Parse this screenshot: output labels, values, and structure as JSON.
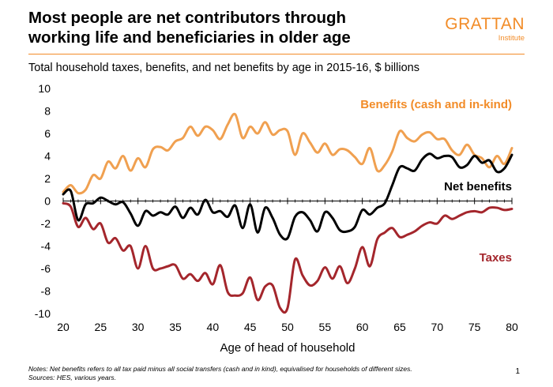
{
  "header": {
    "title_line1": "Most people are net contributors through",
    "title_line2": "working life and beneficiaries in older age",
    "logo_main": "GRATTAN",
    "logo_sub": "Institute",
    "subtitle": "Total household taxes, benefits, and net benefits by age in 2015-16, $ billions"
  },
  "footer": {
    "notes": "Notes: Net benefits refers to all tax paid minus all social transfers (cash and in kind), equivalised for households of different sizes.",
    "sources": "Sources: HES, various years.",
    "page_number": "1"
  },
  "colors": {
    "benefits": "#f0a050",
    "taxes": "#a4262c",
    "net": "#000000",
    "accent": "#f28c28"
  },
  "chart_data": {
    "type": "line",
    "title": "",
    "xlabel": "Age of head of household",
    "ylabel": "",
    "xlim": [
      20,
      80
    ],
    "ylim": [
      -10,
      10
    ],
    "x_ticks": [
      20,
      25,
      30,
      35,
      40,
      45,
      50,
      55,
      60,
      65,
      70,
      75,
      80
    ],
    "y_ticks": [
      10,
      8,
      6,
      4,
      2,
      0,
      -2,
      -4,
      -6,
      -8,
      -10
    ],
    "grid": false,
    "x": [
      20,
      21,
      22,
      23,
      24,
      25,
      26,
      27,
      28,
      29,
      30,
      31,
      32,
      33,
      34,
      35,
      36,
      37,
      38,
      39,
      40,
      41,
      42,
      43,
      44,
      45,
      46,
      47,
      48,
      49,
      50,
      51,
      52,
      53,
      54,
      55,
      56,
      57,
      58,
      59,
      60,
      61,
      62,
      63,
      64,
      65,
      66,
      67,
      68,
      69,
      70,
      71,
      72,
      73,
      74,
      75,
      76,
      77,
      78,
      79,
      80
    ],
    "series": [
      {
        "name": "Benefits (cash and in-kind)",
        "values": [
          0.8,
          1.4,
          0.7,
          1.0,
          2.3,
          2.0,
          3.5,
          2.9,
          4.0,
          2.7,
          3.8,
          3.0,
          4.6,
          4.8,
          4.5,
          5.3,
          5.6,
          6.6,
          5.8,
          6.6,
          6.3,
          5.5,
          6.8,
          7.7,
          5.6,
          6.6,
          6.0,
          7.0,
          5.9,
          6.3,
          6.2,
          4.1,
          6.0,
          5.2,
          4.3,
          5.1,
          4.1,
          4.6,
          4.5,
          3.9,
          3.3,
          4.7,
          2.7,
          3.2,
          4.4,
          6.2,
          5.6,
          5.3,
          5.9,
          6.1,
          5.5,
          5.5,
          4.5,
          4.1,
          5.0,
          4.1,
          3.8,
          3.0,
          4.0,
          3.3,
          4.7
        ]
      },
      {
        "name": "Net benefits",
        "values": [
          0.6,
          0.9,
          -1.7,
          -0.3,
          -0.2,
          0.3,
          0.0,
          -0.3,
          -0.1,
          -1.1,
          -2.2,
          -0.9,
          -1.3,
          -1.0,
          -1.2,
          -0.5,
          -1.5,
          -0.6,
          -1.2,
          0.1,
          -1.0,
          -0.9,
          -1.4,
          -0.4,
          -2.4,
          -0.3,
          -2.8,
          -0.6,
          -1.5,
          -3.0,
          -3.3,
          -1.4,
          -1.0,
          -1.7,
          -2.7,
          -1.0,
          -1.5,
          -2.6,
          -2.7,
          -2.3,
          -0.8,
          -1.2,
          -0.6,
          -0.2,
          1.4,
          3.0,
          2.9,
          2.7,
          3.7,
          4.2,
          3.8,
          4.0,
          3.9,
          3.0,
          3.2,
          4.0,
          3.4,
          3.6,
          2.6,
          2.9,
          4.1
        ]
      },
      {
        "name": "Taxes",
        "values": [
          -0.2,
          -0.5,
          -2.3,
          -1.5,
          -2.5,
          -2.0,
          -3.7,
          -3.3,
          -4.4,
          -4.0,
          -6.0,
          -4.0,
          -6.0,
          -6.0,
          -5.8,
          -5.7,
          -6.9,
          -6.5,
          -7.1,
          -6.4,
          -7.4,
          -5.7,
          -8.1,
          -8.4,
          -8.2,
          -6.8,
          -8.8,
          -7.6,
          -7.5,
          -9.5,
          -9.5,
          -5.2,
          -6.6,
          -7.5,
          -7.1,
          -5.9,
          -6.9,
          -5.8,
          -7.3,
          -6.0,
          -4.1,
          -5.8,
          -3.4,
          -2.8,
          -2.4,
          -3.2,
          -3.0,
          -2.7,
          -2.2,
          -1.9,
          -2.0,
          -1.3,
          -1.6,
          -1.3,
          -1.0,
          -0.9,
          -1.0,
          -0.6,
          -0.6,
          -0.8,
          -0.7
        ]
      }
    ],
    "annotations": [
      {
        "text": "Benefits (cash and in-kind)",
        "series": "Benefits (cash and in-kind)"
      },
      {
        "text": "Net benefits",
        "series": "Net benefits"
      },
      {
        "text": "Taxes",
        "series": "Taxes"
      }
    ]
  }
}
